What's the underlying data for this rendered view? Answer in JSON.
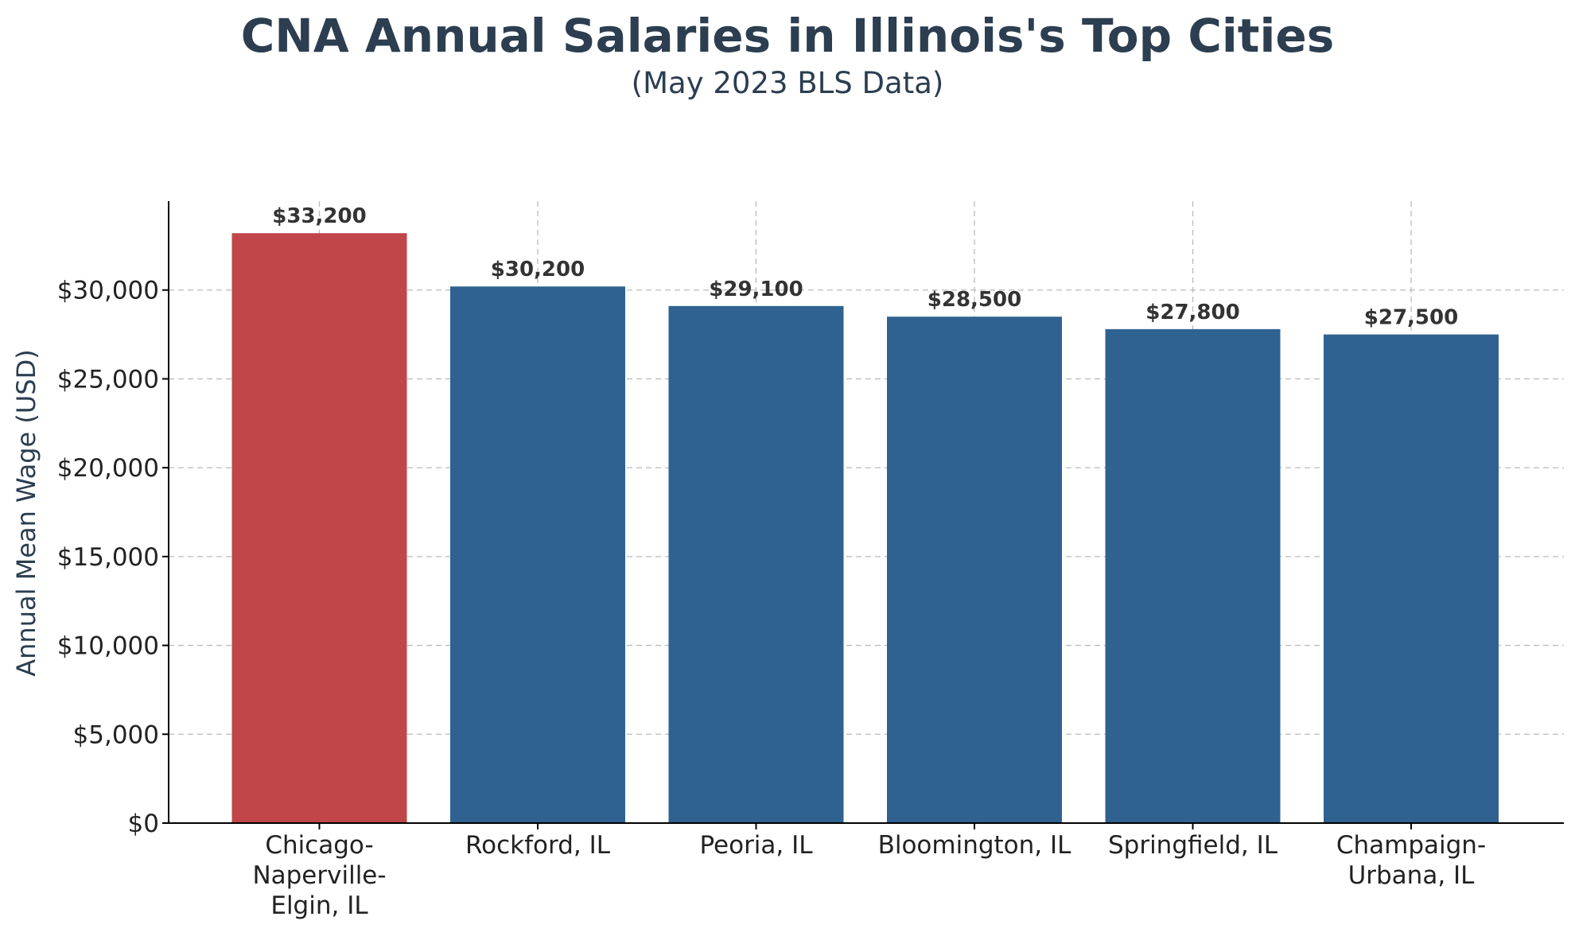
{
  "chart_data": {
    "type": "bar",
    "title": "CNA Annual Salaries in Illinois's Top Cities",
    "subtitle": "(May 2023 BLS Data)",
    "xlabel": "",
    "ylabel": "Annual Mean Wage (USD)",
    "ylim": [
      0,
      35000
    ],
    "yticks": [
      0,
      5000,
      10000,
      15000,
      20000,
      25000,
      30000
    ],
    "ytick_labels": [
      "$0",
      "$5,000",
      "$10,000",
      "$15,000",
      "$20,000",
      "$25,000",
      "$30,000"
    ],
    "categories": [
      [
        "Chicago-",
        "Naperville-",
        "Elgin, IL"
      ],
      [
        "Rockford, IL"
      ],
      [
        "Peoria, IL"
      ],
      [
        "Bloomington, IL"
      ],
      [
        "Springfield, IL"
      ],
      [
        "Champaign-",
        "Urbana, IL"
      ]
    ],
    "values": [
      33200,
      30200,
      29100,
      28500,
      27800,
      27500
    ],
    "data_labels": [
      "$33,200",
      "$30,200",
      "$29,100",
      "$28,500",
      "$27,800",
      "$27,500"
    ],
    "bar_colors": [
      "#c0464a",
      "#2f6290",
      "#2f6290",
      "#2f6290",
      "#2f6290",
      "#2f6290"
    ],
    "grid": "dashed, both axes",
    "legend": "none"
  }
}
